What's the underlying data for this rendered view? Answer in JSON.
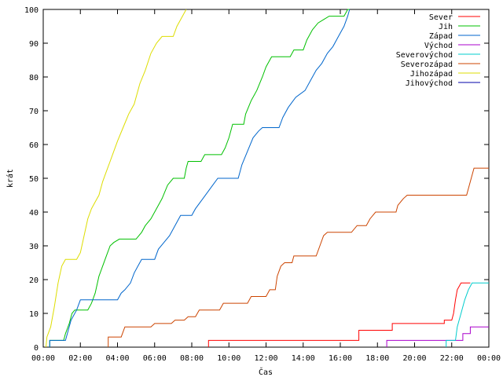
{
  "chart_data": {
    "type": "line",
    "title": "",
    "xlabel": "Čas",
    "ylabel": "krát",
    "xlim": [
      0,
      24
    ],
    "ylim": [
      0,
      100
    ],
    "x_ticks": [
      {
        "value": 0,
        "label": "00:00"
      },
      {
        "value": 2,
        "label": "02:00"
      },
      {
        "value": 4,
        "label": "04:00"
      },
      {
        "value": 6,
        "label": "06:00"
      },
      {
        "value": 8,
        "label": "08:00"
      },
      {
        "value": 10,
        "label": "10:00"
      },
      {
        "value": 12,
        "label": "12:00"
      },
      {
        "value": 14,
        "label": "14:00"
      },
      {
        "value": 16,
        "label": "16:00"
      },
      {
        "value": 18,
        "label": "18:00"
      },
      {
        "value": 20,
        "label": "20:00"
      },
      {
        "value": 22,
        "label": "22:00"
      },
      {
        "value": 24,
        "label": "00:00"
      }
    ],
    "y_ticks": [
      0,
      10,
      20,
      30,
      40,
      50,
      60,
      70,
      80,
      90,
      100
    ],
    "grid": false,
    "legend_position": "top-right",
    "series": [
      {
        "name": "Sever",
        "color": "#ff0000",
        "points": [
          [
            8.9,
            0
          ],
          [
            8.9,
            2
          ],
          [
            17.0,
            2
          ],
          [
            17.0,
            5
          ],
          [
            18.8,
            5
          ],
          [
            18.8,
            7
          ],
          [
            21.6,
            7
          ],
          [
            21.6,
            8
          ],
          [
            22.0,
            8
          ],
          [
            22.1,
            10
          ],
          [
            22.2,
            14
          ],
          [
            22.3,
            17
          ],
          [
            22.4,
            18
          ],
          [
            22.5,
            19
          ],
          [
            23.0,
            19
          ]
        ]
      },
      {
        "name": "Jih",
        "color": "#00c000",
        "points": [
          [
            0.35,
            0
          ],
          [
            0.35,
            2
          ],
          [
            1.1,
            2
          ],
          [
            1.2,
            4
          ],
          [
            1.4,
            7
          ],
          [
            1.55,
            10
          ],
          [
            1.7,
            11
          ],
          [
            2.4,
            11
          ],
          [
            2.6,
            13
          ],
          [
            2.8,
            16
          ],
          [
            3.0,
            21
          ],
          [
            3.2,
            24
          ],
          [
            3.4,
            27
          ],
          [
            3.6,
            30
          ],
          [
            3.8,
            31
          ],
          [
            4.1,
            32
          ],
          [
            5.0,
            32
          ],
          [
            5.3,
            34
          ],
          [
            5.5,
            36
          ],
          [
            5.8,
            38
          ],
          [
            6.1,
            41
          ],
          [
            6.4,
            44
          ],
          [
            6.7,
            48
          ],
          [
            7.0,
            50
          ],
          [
            7.6,
            50
          ],
          [
            7.7,
            53
          ],
          [
            7.8,
            55
          ],
          [
            8.5,
            55
          ],
          [
            8.7,
            57
          ],
          [
            9.6,
            57
          ],
          [
            9.8,
            59
          ],
          [
            10.0,
            62
          ],
          [
            10.2,
            66
          ],
          [
            10.8,
            66
          ],
          [
            10.9,
            69
          ],
          [
            11.2,
            73
          ],
          [
            11.5,
            76
          ],
          [
            11.8,
            80
          ],
          [
            12.0,
            83
          ],
          [
            12.3,
            86
          ],
          [
            13.3,
            86
          ],
          [
            13.5,
            88
          ],
          [
            14.0,
            88
          ],
          [
            14.2,
            91
          ],
          [
            14.5,
            94
          ],
          [
            14.8,
            96
          ],
          [
            15.1,
            97
          ],
          [
            15.4,
            98
          ],
          [
            16.2,
            98
          ],
          [
            16.4,
            100
          ],
          [
            16.5,
            100
          ]
        ]
      },
      {
        "name": "Západ",
        "color": "#0066cc",
        "points": [
          [
            0.35,
            0
          ],
          [
            0.35,
            2
          ],
          [
            1.2,
            2
          ],
          [
            1.3,
            4
          ],
          [
            1.5,
            8
          ],
          [
            1.8,
            11
          ],
          [
            2.0,
            14
          ],
          [
            4.0,
            14
          ],
          [
            4.2,
            16
          ],
          [
            4.4,
            17
          ],
          [
            4.7,
            19
          ],
          [
            4.9,
            22
          ],
          [
            5.1,
            24
          ],
          [
            5.3,
            26
          ],
          [
            6.0,
            26
          ],
          [
            6.2,
            29
          ],
          [
            6.5,
            31
          ],
          [
            6.8,
            33
          ],
          [
            7.0,
            35
          ],
          [
            7.2,
            37
          ],
          [
            7.4,
            39
          ],
          [
            8.0,
            39
          ],
          [
            8.2,
            41
          ],
          [
            8.6,
            44
          ],
          [
            9.0,
            47
          ],
          [
            9.4,
            50
          ],
          [
            10.5,
            50
          ],
          [
            10.7,
            54
          ],
          [
            11.0,
            58
          ],
          [
            11.3,
            62
          ],
          [
            11.6,
            64
          ],
          [
            11.8,
            65
          ],
          [
            12.7,
            65
          ],
          [
            12.9,
            68
          ],
          [
            13.2,
            71
          ],
          [
            13.6,
            74
          ],
          [
            14.1,
            76
          ],
          [
            14.4,
            79
          ],
          [
            14.7,
            82
          ],
          [
            15.0,
            84
          ],
          [
            15.3,
            87
          ],
          [
            15.6,
            89
          ],
          [
            15.9,
            92
          ],
          [
            16.2,
            95
          ],
          [
            16.4,
            98
          ],
          [
            16.5,
            100
          ]
        ]
      },
      {
        "name": "Východ",
        "color": "#aa00cc",
        "points": [
          [
            18.5,
            0
          ],
          [
            18.5,
            2
          ],
          [
            22.6,
            2
          ],
          [
            22.6,
            4
          ],
          [
            23.0,
            4
          ],
          [
            23.0,
            6
          ],
          [
            24.0,
            6
          ]
        ]
      },
      {
        "name": "Severovýchod",
        "color": "#00cccc",
        "points": [
          [
            21.7,
            0
          ],
          [
            21.7,
            2
          ],
          [
            22.2,
            2
          ],
          [
            22.3,
            6
          ],
          [
            22.5,
            10
          ],
          [
            22.7,
            14
          ],
          [
            22.9,
            17
          ],
          [
            23.1,
            19
          ],
          [
            24.0,
            19
          ]
        ]
      },
      {
        "name": "Severozápad",
        "color": "#cc4400",
        "points": [
          [
            3.5,
            0
          ],
          [
            3.5,
            3
          ],
          [
            4.2,
            3
          ],
          [
            4.4,
            6
          ],
          [
            5.8,
            6
          ],
          [
            6.0,
            7
          ],
          [
            6.9,
            7
          ],
          [
            7.1,
            8
          ],
          [
            7.6,
            8
          ],
          [
            7.8,
            9
          ],
          [
            8.2,
            9
          ],
          [
            8.4,
            11
          ],
          [
            9.5,
            11
          ],
          [
            9.7,
            13
          ],
          [
            11.0,
            13
          ],
          [
            11.2,
            15
          ],
          [
            12.0,
            15
          ],
          [
            12.2,
            17
          ],
          [
            12.5,
            17
          ],
          [
            12.6,
            21
          ],
          [
            12.8,
            24
          ],
          [
            13.0,
            25
          ],
          [
            13.4,
            25
          ],
          [
            13.5,
            27
          ],
          [
            14.7,
            27
          ],
          [
            14.9,
            30
          ],
          [
            15.1,
            33
          ],
          [
            15.3,
            34
          ],
          [
            16.6,
            34
          ],
          [
            16.9,
            36
          ],
          [
            17.4,
            36
          ],
          [
            17.6,
            38
          ],
          [
            17.9,
            40
          ],
          [
            19.0,
            40
          ],
          [
            19.1,
            42
          ],
          [
            19.4,
            44
          ],
          [
            19.6,
            45
          ],
          [
            22.8,
            45
          ],
          [
            23.0,
            49
          ],
          [
            23.2,
            53
          ],
          [
            24.0,
            53
          ]
        ]
      },
      {
        "name": "Jihozápad",
        "color": "#dddd00",
        "points": [
          [
            0.15,
            0
          ],
          [
            0.2,
            3
          ],
          [
            0.4,
            6
          ],
          [
            0.6,
            12
          ],
          [
            0.8,
            19
          ],
          [
            1.0,
            24
          ],
          [
            1.2,
            26
          ],
          [
            1.8,
            26
          ],
          [
            2.0,
            28
          ],
          [
            2.2,
            33
          ],
          [
            2.4,
            38
          ],
          [
            2.6,
            41
          ],
          [
            2.8,
            43
          ],
          [
            3.0,
            45
          ],
          [
            3.2,
            49
          ],
          [
            3.4,
            52
          ],
          [
            3.6,
            55
          ],
          [
            3.8,
            58
          ],
          [
            4.0,
            61
          ],
          [
            4.3,
            65
          ],
          [
            4.6,
            69
          ],
          [
            4.9,
            72
          ],
          [
            5.2,
            78
          ],
          [
            5.5,
            82
          ],
          [
            5.8,
            87
          ],
          [
            6.1,
            90
          ],
          [
            6.4,
            92
          ],
          [
            7.0,
            92
          ],
          [
            7.2,
            95
          ],
          [
            7.5,
            98
          ],
          [
            7.7,
            100
          ]
        ]
      },
      {
        "name": "Jihovýchod",
        "color": "#0000aa",
        "points": []
      }
    ]
  }
}
